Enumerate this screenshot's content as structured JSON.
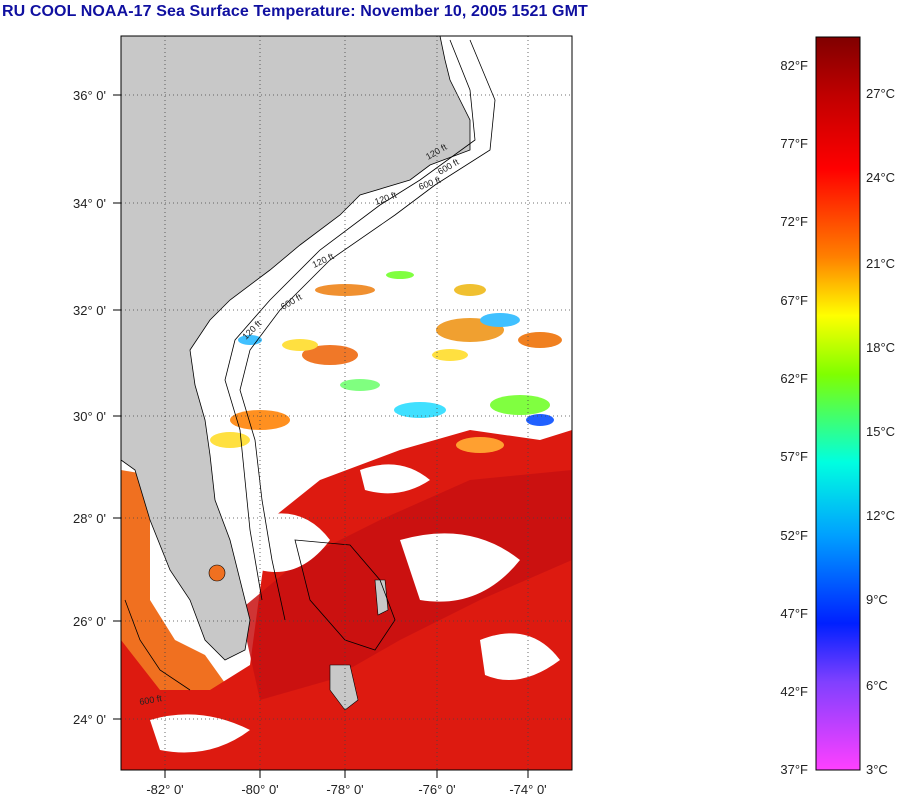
{
  "title": "RU COOL  NOAA-17  Sea Surface Temperature:  November 10, 2005 1521 GMT",
  "map": {
    "lat_labels": [
      "36° 0'",
      "34° 0'",
      "32° 0'",
      "30° 0'",
      "28° 0'",
      "26° 0'",
      "24° 0'"
    ],
    "lon_labels": [
      "-82° 0'",
      "-80° 0'",
      "-78° 0'",
      "-76° 0'",
      "-74° 0'"
    ],
    "contour_labels": [
      "120 ft",
      "600 ft",
      "120 ft",
      "600 ft",
      "120 ft",
      "600 ft",
      "120 ft",
      "600 ft"
    ],
    "colors": {
      "land": "#c8c8c8",
      "cloud": "#ffffff",
      "warm_water": "#e01010",
      "gulf_water": "#f06020"
    }
  },
  "colorbar": {
    "fahrenheit": [
      "82°F",
      "77°F",
      "72°F",
      "67°F",
      "62°F",
      "57°F",
      "52°F",
      "47°F",
      "42°F",
      "37°F"
    ],
    "celsius": [
      "27°C",
      "24°C",
      "21°C",
      "18°C",
      "15°C",
      "12°C",
      "9°C",
      "6°C",
      "3°C"
    ],
    "stops": [
      "#800000",
      "#ff0000",
      "#ff8000",
      "#ffff00",
      "#80ff00",
      "#00ffc0",
      "#00c0ff",
      "#0060ff",
      "#0000ff",
      "#8040ff",
      "#ff40ff"
    ]
  }
}
